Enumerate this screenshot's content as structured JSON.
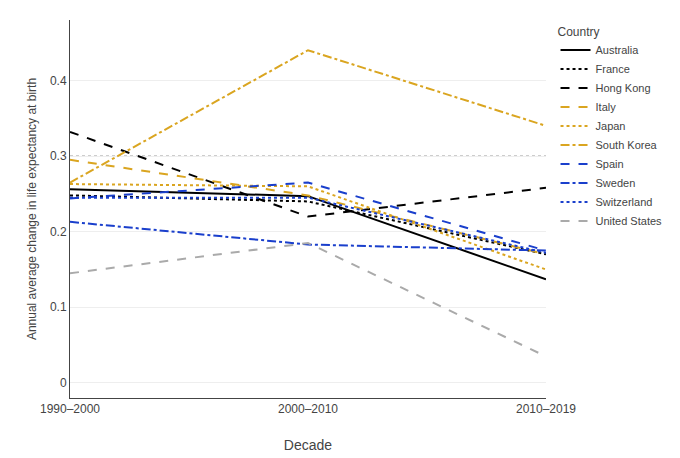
{
  "chart_data": {
    "type": "line",
    "xlabel": "Decade",
    "ylabel": "Annual average change in life expectancy at birth",
    "legend_title": "Country",
    "categories": [
      "1990–2000",
      "2000–2010",
      "2010–2019"
    ],
    "series": [
      {
        "name": "Australia",
        "color": "#000000",
        "line_style": "solid",
        "values": [
          0.256,
          0.247,
          0.137
        ]
      },
      {
        "name": "France",
        "color": "#000000",
        "line_style": "dotted",
        "values": [
          0.248,
          0.24,
          0.17
        ]
      },
      {
        "name": "Hong Kong",
        "color": "#000000",
        "line_style": "dashed",
        "values": [
          0.332,
          0.22,
          0.258
        ]
      },
      {
        "name": "Italy",
        "color": "#DAA520",
        "line_style": "dashed",
        "values": [
          0.295,
          0.248,
          0.17
        ]
      },
      {
        "name": "Japan",
        "color": "#DAA520",
        "line_style": "dotted",
        "values": [
          0.263,
          0.26,
          0.15
        ]
      },
      {
        "name": "South Korea",
        "color": "#DAA520",
        "line_style": "dashdot",
        "values": [
          0.265,
          0.44,
          0.34
        ]
      },
      {
        "name": "Spain",
        "color": "#1a3fcc",
        "line_style": "dashed",
        "values": [
          0.244,
          0.265,
          0.175
        ]
      },
      {
        "name": "Sweden",
        "color": "#1a3fcc",
        "line_style": "dashdot",
        "values": [
          0.213,
          0.183,
          0.175
        ]
      },
      {
        "name": "Switzerland",
        "color": "#1a3fcc",
        "line_style": "dotted",
        "values": [
          0.245,
          0.245,
          0.172
        ]
      },
      {
        "name": "United States",
        "color": "#aaaaaa",
        "line_style": "dashed",
        "values": [
          0.145,
          0.185,
          0.035
        ]
      }
    ],
    "hline": {
      "y": 0.3,
      "color": "#888888",
      "line_style": "dotted"
    },
    "ylim": [
      -0.02,
      0.48
    ],
    "yticks": [
      0,
      0.1,
      0.2,
      0.3,
      0.4
    ],
    "grid": true,
    "legend": "right"
  }
}
